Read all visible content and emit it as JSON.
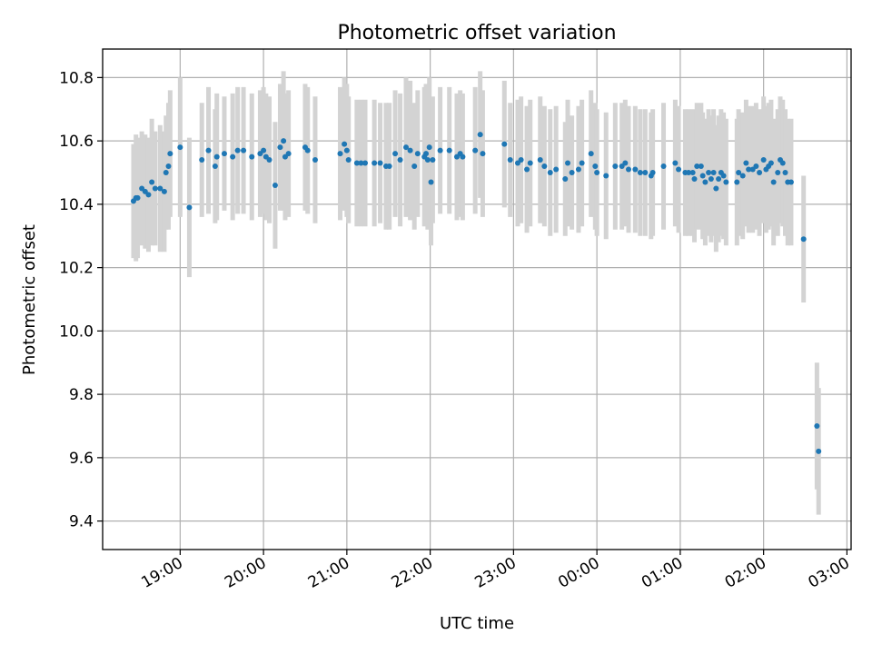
{
  "chart_data": {
    "type": "scatter",
    "title": "Photometric offset variation",
    "xlabel": "UTC time",
    "ylabel": "Photometric offset",
    "grid": true,
    "x_unit": "hours since 19:00 UTC",
    "xlim": [
      -0.93,
      8.05
    ],
    "ylim": [
      9.31,
      10.89
    ],
    "x_ticks": [
      {
        "v": 0,
        "label": "19:00"
      },
      {
        "v": 1,
        "label": "20:00"
      },
      {
        "v": 2,
        "label": "21:00"
      },
      {
        "v": 3,
        "label": "22:00"
      },
      {
        "v": 4,
        "label": "23:00"
      },
      {
        "v": 5,
        "label": "00:00"
      },
      {
        "v": 6,
        "label": "01:00"
      },
      {
        "v": 7,
        "label": "02:00"
      },
      {
        "v": 8,
        "label": "03:00"
      }
    ],
    "y_ticks": [
      {
        "v": 9.4,
        "label": "9.4"
      },
      {
        "v": 9.6,
        "label": "9.6"
      },
      {
        "v": 9.8,
        "label": "9.8"
      },
      {
        "v": 10.0,
        "label": "10.0"
      },
      {
        "v": 10.2,
        "label": "10.2"
      },
      {
        "v": 10.4,
        "label": "10.4"
      },
      {
        "v": 10.6,
        "label": "10.6"
      },
      {
        "v": 10.8,
        "label": "10.8"
      }
    ],
    "series": [
      {
        "name": "offset",
        "marker_color": "#1f77b4",
        "errorbar_color": "#d3d3d3",
        "points": [
          [
            -0.56,
            10.41,
            0.18
          ],
          [
            -0.53,
            10.42,
            0.2
          ],
          [
            -0.51,
            10.42,
            0.19
          ],
          [
            -0.46,
            10.45,
            0.18
          ],
          [
            -0.42,
            10.44,
            0.18
          ],
          [
            -0.38,
            10.43,
            0.18
          ],
          [
            -0.34,
            10.47,
            0.2
          ],
          [
            -0.3,
            10.45,
            0.18
          ],
          [
            -0.24,
            10.45,
            0.2
          ],
          [
            -0.19,
            10.44,
            0.19
          ],
          [
            -0.17,
            10.5,
            0.18
          ],
          [
            -0.14,
            10.52,
            0.2
          ],
          [
            -0.12,
            10.56,
            0.2
          ],
          [
            0.0,
            10.58,
            0.22
          ],
          [
            0.11,
            10.39,
            0.22
          ],
          [
            0.26,
            10.54,
            0.18
          ],
          [
            0.34,
            10.57,
            0.2
          ],
          [
            0.42,
            10.52,
            0.18
          ],
          [
            0.44,
            10.55,
            0.2
          ],
          [
            0.53,
            10.56,
            0.18
          ],
          [
            0.63,
            10.55,
            0.2
          ],
          [
            0.69,
            10.57,
            0.2
          ],
          [
            0.76,
            10.57,
            0.2
          ],
          [
            0.86,
            10.55,
            0.2
          ],
          [
            0.96,
            10.56,
            0.2
          ],
          [
            1.0,
            10.57,
            0.2
          ],
          [
            1.03,
            10.55,
            0.2
          ],
          [
            1.07,
            10.54,
            0.2
          ],
          [
            1.14,
            10.46,
            0.2
          ],
          [
            1.2,
            10.58,
            0.2
          ],
          [
            1.24,
            10.6,
            0.22
          ],
          [
            1.26,
            10.55,
            0.2
          ],
          [
            1.3,
            10.56,
            0.2
          ],
          [
            1.5,
            10.58,
            0.2
          ],
          [
            1.53,
            10.57,
            0.2
          ],
          [
            1.62,
            10.54,
            0.2
          ],
          [
            1.92,
            10.56,
            0.21
          ],
          [
            1.97,
            10.59,
            0.21
          ],
          [
            2.0,
            10.57,
            0.21
          ],
          [
            2.02,
            10.54,
            0.2
          ],
          [
            2.12,
            10.53,
            0.2
          ],
          [
            2.17,
            10.53,
            0.2
          ],
          [
            2.22,
            10.53,
            0.2
          ],
          [
            2.33,
            10.53,
            0.2
          ],
          [
            2.4,
            10.53,
            0.19
          ],
          [
            2.47,
            10.52,
            0.2
          ],
          [
            2.51,
            10.52,
            0.2
          ],
          [
            2.58,
            10.56,
            0.2
          ],
          [
            2.64,
            10.54,
            0.21
          ],
          [
            2.71,
            10.58,
            0.22
          ],
          [
            2.76,
            10.57,
            0.22
          ],
          [
            2.81,
            10.52,
            0.2
          ],
          [
            2.85,
            10.56,
            0.2
          ],
          [
            2.93,
            10.55,
            0.22
          ],
          [
            2.95,
            10.56,
            0.22
          ],
          [
            2.97,
            10.54,
            0.22
          ],
          [
            2.99,
            10.58,
            0.22
          ],
          [
            3.01,
            10.47,
            0.2
          ],
          [
            3.03,
            10.54,
            0.2
          ],
          [
            3.12,
            10.57,
            0.2
          ],
          [
            3.23,
            10.57,
            0.2
          ],
          [
            3.32,
            10.55,
            0.2
          ],
          [
            3.36,
            10.56,
            0.2
          ],
          [
            3.39,
            10.55,
            0.2
          ],
          [
            3.54,
            10.57,
            0.2
          ],
          [
            3.6,
            10.62,
            0.2
          ],
          [
            3.63,
            10.56,
            0.2
          ],
          [
            3.89,
            10.59,
            0.2
          ],
          [
            3.96,
            10.54,
            0.18
          ],
          [
            4.05,
            10.53,
            0.2
          ],
          [
            4.09,
            10.54,
            0.2
          ],
          [
            4.16,
            10.51,
            0.2
          ],
          [
            4.2,
            10.53,
            0.2
          ],
          [
            4.32,
            10.54,
            0.2
          ],
          [
            4.37,
            10.52,
            0.19
          ],
          [
            4.44,
            10.5,
            0.2
          ],
          [
            4.51,
            10.51,
            0.2
          ],
          [
            4.62,
            10.48,
            0.18
          ],
          [
            4.65,
            10.53,
            0.2
          ],
          [
            4.7,
            10.5,
            0.18
          ],
          [
            4.78,
            10.51,
            0.2
          ],
          [
            4.82,
            10.53,
            0.2
          ],
          [
            4.93,
            10.56,
            0.2
          ],
          [
            4.98,
            10.52,
            0.2
          ],
          [
            5.0,
            10.5,
            0.2
          ],
          [
            5.11,
            10.49,
            0.2
          ],
          [
            5.22,
            10.52,
            0.2
          ],
          [
            5.3,
            10.52,
            0.2
          ],
          [
            5.34,
            10.53,
            0.2
          ],
          [
            5.38,
            10.51,
            0.2
          ],
          [
            5.46,
            10.51,
            0.2
          ],
          [
            5.52,
            10.5,
            0.2
          ],
          [
            5.58,
            10.5,
            0.2
          ],
          [
            5.65,
            10.49,
            0.2
          ],
          [
            5.67,
            10.5,
            0.2
          ],
          [
            5.8,
            10.52,
            0.2
          ],
          [
            5.94,
            10.53,
            0.2
          ],
          [
            5.98,
            10.51,
            0.2
          ],
          [
            6.06,
            10.5,
            0.2
          ],
          [
            6.1,
            10.5,
            0.2
          ],
          [
            6.15,
            10.5,
            0.2
          ],
          [
            6.17,
            10.48,
            0.2
          ],
          [
            6.2,
            10.52,
            0.2
          ],
          [
            6.25,
            10.52,
            0.2
          ],
          [
            6.27,
            10.49,
            0.2
          ],
          [
            6.3,
            10.47,
            0.2
          ],
          [
            6.34,
            10.5,
            0.2
          ],
          [
            6.37,
            10.48,
            0.2
          ],
          [
            6.4,
            10.5,
            0.2
          ],
          [
            6.43,
            10.45,
            0.2
          ],
          [
            6.46,
            10.48,
            0.2
          ],
          [
            6.49,
            10.5,
            0.2
          ],
          [
            6.52,
            10.49,
            0.2
          ],
          [
            6.55,
            10.47,
            0.2
          ],
          [
            6.68,
            10.47,
            0.2
          ],
          [
            6.7,
            10.5,
            0.2
          ],
          [
            6.75,
            10.49,
            0.2
          ],
          [
            6.79,
            10.53,
            0.2
          ],
          [
            6.82,
            10.51,
            0.2
          ],
          [
            6.87,
            10.51,
            0.2
          ],
          [
            6.91,
            10.52,
            0.2
          ],
          [
            6.95,
            10.5,
            0.2
          ],
          [
            7.0,
            10.54,
            0.2
          ],
          [
            7.03,
            10.51,
            0.2
          ],
          [
            7.06,
            10.52,
            0.2
          ],
          [
            7.09,
            10.53,
            0.2
          ],
          [
            7.12,
            10.47,
            0.2
          ],
          [
            7.17,
            10.5,
            0.2
          ],
          [
            7.2,
            10.54,
            0.2
          ],
          [
            7.23,
            10.53,
            0.2
          ],
          [
            7.26,
            10.5,
            0.2
          ],
          [
            7.29,
            10.47,
            0.2
          ],
          [
            7.33,
            10.47,
            0.2
          ],
          [
            7.48,
            10.29,
            0.2
          ],
          [
            7.64,
            9.7,
            0.2
          ],
          [
            7.66,
            9.62,
            0.2
          ]
        ]
      }
    ]
  }
}
